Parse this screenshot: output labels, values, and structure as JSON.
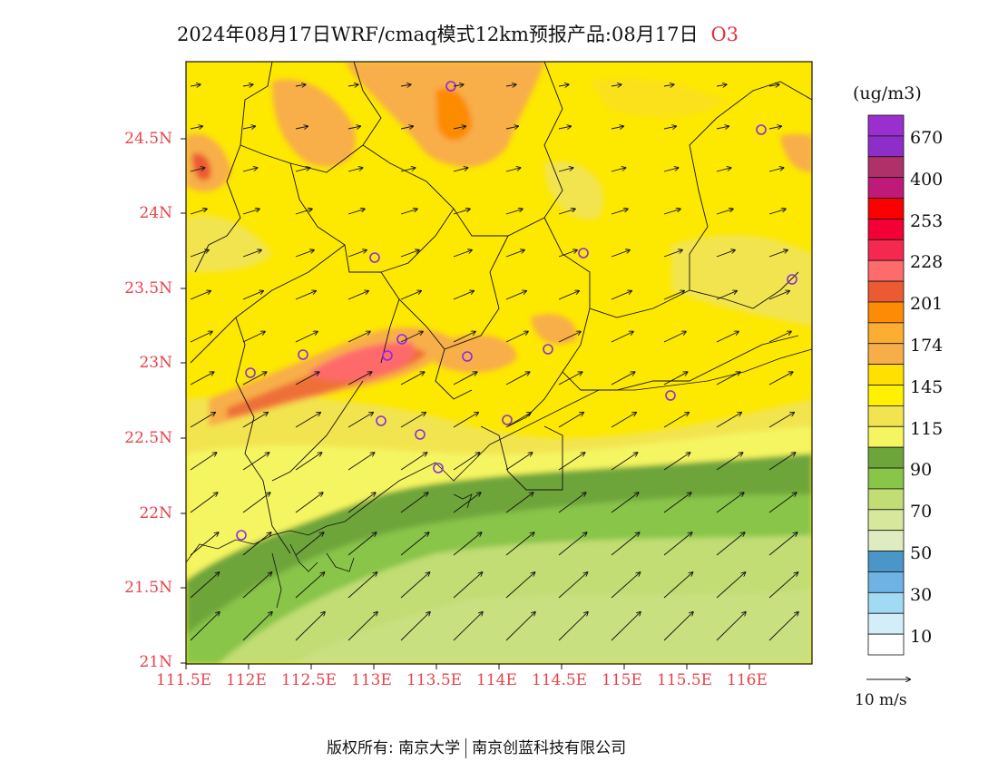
{
  "title": {
    "main": "2024年08月17日WRF/cmaq模式12km预报产品:08月17日",
    "species": "O3"
  },
  "axes": {
    "lat_labels": [
      "24.5N",
      "24N",
      "23.5N",
      "23N",
      "22.5N",
      "22N",
      "21.5N",
      "21N"
    ],
    "lon_labels": [
      "111.5E",
      "112E",
      "112.5E",
      "113E",
      "113.5E",
      "114E",
      "114.5E",
      "115E",
      "115.5E",
      "116E"
    ]
  },
  "legend": {
    "unit": "(ug/m3)",
    "labels": [
      "670",
      "400",
      "253",
      "228",
      "201",
      "174",
      "145",
      "115",
      "90",
      "70",
      "50",
      "30",
      "10"
    ],
    "colors": [
      "#9a2fd0",
      "#8e2ec8",
      "#b0306a",
      "#c01a78",
      "#fb0000",
      "#f30036",
      "#f52850",
      "#fe6b6b",
      "#eb5a32",
      "#fd8b06",
      "#fbae31",
      "#f8ae48",
      "#ffe000",
      "#fff100",
      "#f2e450",
      "#f5f562",
      "#6ea53a",
      "#88c549",
      "#c1dd73",
      "#d7e79b",
      "#dfebc0",
      "#4a96c9",
      "#6fb3e4",
      "#a2daf4",
      "#d4eef9",
      "#ffffff"
    ]
  },
  "wind": {
    "reference_label": "10 m/s"
  },
  "footer": {
    "owner": "版权所有: 南京大学",
    "partner": "南京创蓝科技有限公司"
  }
}
